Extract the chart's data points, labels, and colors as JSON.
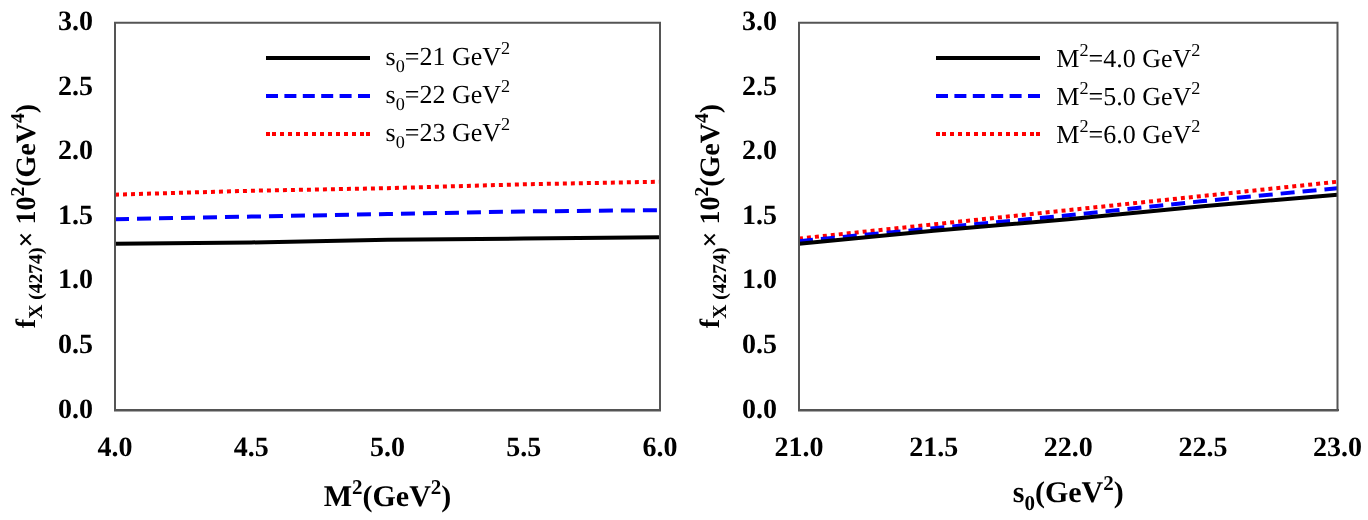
{
  "chart_data": [
    {
      "type": "line",
      "xlabel": "M$^{2}$(GeV$^{2}$)",
      "ylabel": "f$_{X (4274)}$× 10$^{2}$(GeV$^{4}$)",
      "x": [
        4.0,
        4.5,
        5.0,
        5.5,
        6.0
      ],
      "xlim": [
        4.0,
        6.0
      ],
      "xticks": [
        {
          "value": 4.0,
          "label": "4.0"
        },
        {
          "value": 4.5,
          "label": "4.5"
        },
        {
          "value": 5.0,
          "label": "5.0"
        },
        {
          "value": 5.5,
          "label": "5.5"
        },
        {
          "value": 6.0,
          "label": "6.0"
        }
      ],
      "ylim": [
        0,
        3.0
      ],
      "yticks": [
        {
          "value": 0,
          "label": "0.0"
        },
        {
          "value": 0.5,
          "label": "0.5"
        },
        {
          "value": 1.0,
          "label": "1.0"
        },
        {
          "value": 1.5,
          "label": "1.5"
        },
        {
          "value": 2.0,
          "label": "2.0"
        },
        {
          "value": 2.5,
          "label": "2.5"
        },
        {
          "value": 3.0,
          "label": "3.0"
        }
      ],
      "grid": false,
      "legend": "top",
      "marker": "none",
      "series": [
        {
          "name": "s$_{0}$=21 GeV$^{2}$",
          "color": "#000000",
          "line_style": "solid",
          "values": [
            1.29,
            1.3,
            1.32,
            1.33,
            1.34
          ]
        },
        {
          "name": "s$_{0}$=22 GeV$^{2}$",
          "color": "#0000ff",
          "line_style": "dashed",
          "values": [
            1.48,
            1.5,
            1.52,
            1.54,
            1.55
          ]
        },
        {
          "name": "s$_{0}$=23 GeV$^{2}$",
          "color": "#ff0000",
          "line_style": "dotted",
          "values": [
            1.67,
            1.7,
            1.72,
            1.75,
            1.77
          ]
        }
      ]
    },
    {
      "type": "line",
      "xlabel": "s$_{0}$(GeV$^{2}$)",
      "ylabel": "f$_{X (4274)}$× 10$^{2}$(GeV$^{4}$)",
      "x": [
        21.0,
        21.5,
        22.0,
        22.5,
        23.0
      ],
      "xlim": [
        21.0,
        23.0
      ],
      "xticks": [
        {
          "value": 21.0,
          "label": "21.0"
        },
        {
          "value": 21.5,
          "label": "21.5"
        },
        {
          "value": 22.0,
          "label": "22.0"
        },
        {
          "value": 22.5,
          "label": "22.5"
        },
        {
          "value": 23.0,
          "label": "23.0"
        }
      ],
      "ylim": [
        0,
        3.0
      ],
      "yticks": [
        {
          "value": 0,
          "label": "0.0"
        },
        {
          "value": 0.5,
          "label": "0.5"
        },
        {
          "value": 1.0,
          "label": "1.0"
        },
        {
          "value": 1.5,
          "label": "1.5"
        },
        {
          "value": 2.0,
          "label": "2.0"
        },
        {
          "value": 2.5,
          "label": "2.5"
        },
        {
          "value": 3.0,
          "label": "3.0"
        }
      ],
      "grid": false,
      "legend": "top",
      "marker": "none",
      "series": [
        {
          "name": "M$^{2}$=4.0 GeV$^{2}$",
          "color": "#000000",
          "line_style": "solid",
          "values": [
            1.29,
            1.39,
            1.48,
            1.58,
            1.67
          ]
        },
        {
          "name": "M$^{2}$=5.0 GeV$^{2}$",
          "color": "#0000ff",
          "line_style": "dashed",
          "values": [
            1.31,
            1.41,
            1.51,
            1.62,
            1.72
          ]
        },
        {
          "name": "M$^{2}$=6.0 GeV$^{2}$",
          "color": "#ff0000",
          "line_style": "dotted",
          "values": [
            1.33,
            1.44,
            1.55,
            1.66,
            1.77
          ]
        }
      ]
    }
  ]
}
